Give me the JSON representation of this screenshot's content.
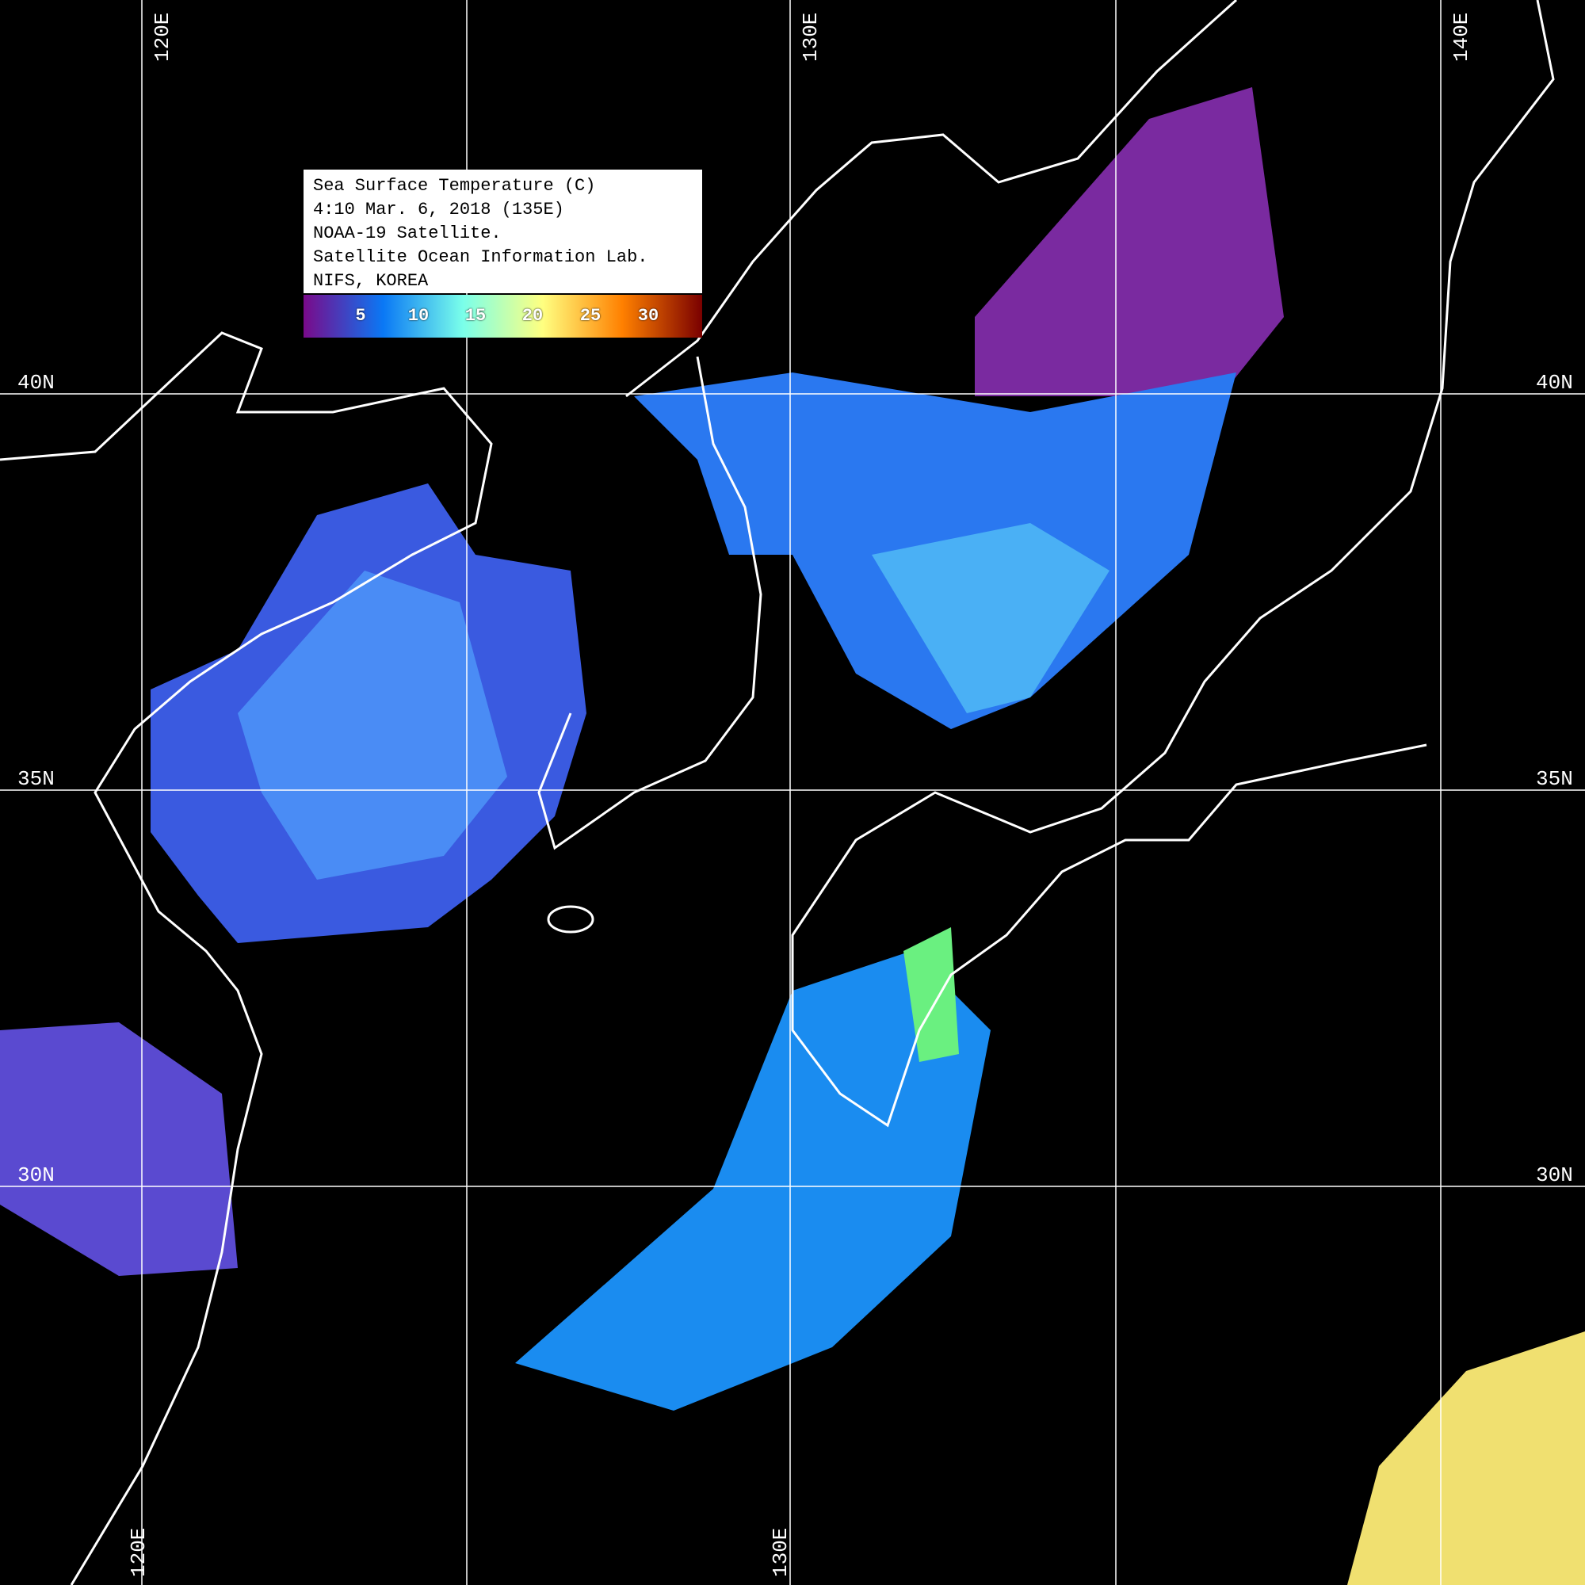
{
  "legend": {
    "lines": [
      "Sea Surface Temperature (C)",
      "4:10 Mar. 6, 2018 (135E)",
      "NOAA-19 Satellite.",
      "Satellite Ocean Information Lab.",
      "NIFS, KOREA"
    ],
    "colorbar_ticks": [
      "5",
      "10",
      "15",
      "20",
      "25",
      "30"
    ],
    "colorbar_colors": [
      "#7a0a8a",
      "#0a78f5",
      "#7affea",
      "#ffff80",
      "#ff8000",
      "#7a0000"
    ]
  },
  "grid": {
    "lon_labels_top": [
      "120E",
      "130E",
      "140E"
    ],
    "lon_labels_bottom": [
      "120E",
      "130E"
    ],
    "lat_labels": [
      "40N",
      "35N",
      "30N"
    ]
  },
  "colors": {
    "background": "#000000",
    "coastline": "#ffffff",
    "grid": "#ffffff"
  }
}
